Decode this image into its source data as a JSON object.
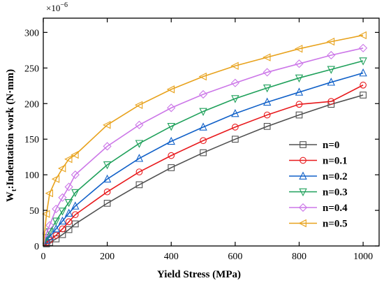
{
  "chart_data": {
    "type": "line",
    "ylabel_main": "W",
    "ylabel_sub": "t",
    "ylabel_rest": ":Indentation work (N·mm)",
    "xlabel": "Yield Stress (MPa)",
    "y_multiplier_base": "×10",
    "y_multiplier_exp": "−6",
    "xlim": [
      0,
      1050
    ],
    "ylim": [
      0,
      320
    ],
    "xticks": [
      0,
      200,
      400,
      600,
      800,
      1000
    ],
    "yticks": [
      0,
      50,
      100,
      150,
      200,
      250,
      300
    ],
    "x": [
      10,
      20,
      40,
      60,
      80,
      100,
      200,
      300,
      400,
      500,
      600,
      700,
      800,
      900,
      1000
    ],
    "series": [
      {
        "name": "n=0",
        "color": "#505050",
        "marker": "square",
        "values": [
          3,
          5,
          10,
          16,
          23,
          31,
          60,
          86,
          110,
          131,
          150,
          168,
          184,
          199,
          212
        ]
      },
      {
        "name": "n=0.1",
        "color": "#e8191c",
        "marker": "circle",
        "values": [
          5,
          8,
          15,
          24,
          34,
          44,
          76,
          104,
          127,
          148,
          167,
          184,
          199,
          203,
          226
        ]
      },
      {
        "name": "n=0.2",
        "color": "#1060c8",
        "marker": "triangle-up",
        "values": [
          8,
          13,
          24,
          35,
          46,
          56,
          94,
          123,
          147,
          167,
          186,
          202,
          216,
          230,
          243
        ]
      },
      {
        "name": "n=0.3",
        "color": "#1ea05a",
        "marker": "triangle-down",
        "values": [
          12,
          20,
          35,
          49,
          61,
          75,
          114,
          144,
          168,
          189,
          207,
          222,
          236,
          248,
          260
        ]
      },
      {
        "name": "n=0.4",
        "color": "#cc77e8",
        "marker": "diamond",
        "values": [
          18,
          29,
          52,
          68,
          83,
          100,
          140,
          170,
          194,
          213,
          229,
          244,
          256,
          268,
          278
        ]
      },
      {
        "name": "n=0.5",
        "color": "#e8a21c",
        "marker": "triangle-left",
        "values": [
          45,
          74,
          94,
          109,
          122,
          128,
          170,
          198,
          220,
          238,
          253,
          265,
          277,
          287,
          296
        ]
      }
    ],
    "legend_position": "bottom-right"
  }
}
